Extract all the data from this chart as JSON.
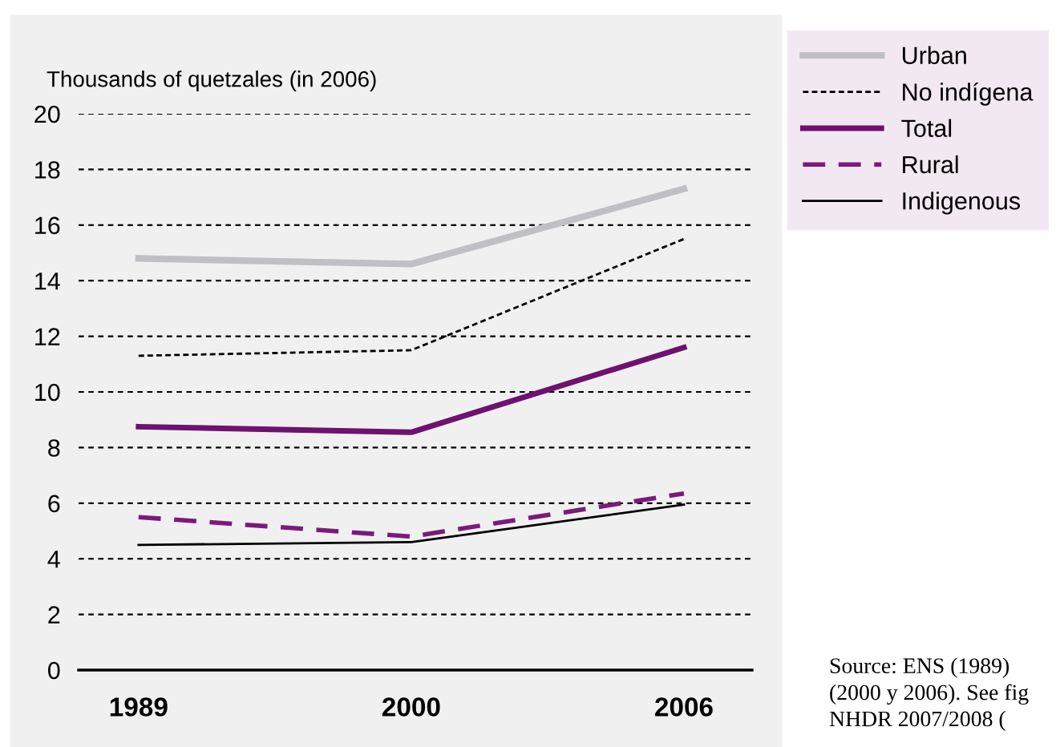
{
  "chart_data": {
    "type": "line",
    "ylabel": "Thousands of quetzales (in 2006)",
    "categories": [
      "1989",
      "2000",
      "2006"
    ],
    "series": [
      {
        "name": "Urban",
        "color": "#c0c0c4",
        "values": [
          14.8,
          14.6,
          17.3
        ],
        "line_style": "solid"
      },
      {
        "name": "No indígena",
        "color": "#000000",
        "values": [
          11.3,
          11.5,
          15.5
        ],
        "line_style": "dotted"
      },
      {
        "name": "Total",
        "color": "#6e1170",
        "values": [
          8.75,
          8.55,
          11.6
        ],
        "line_style": "solid"
      },
      {
        "name": "Rural",
        "color": "#7a1a7a",
        "values": [
          5.5,
          4.8,
          6.35
        ],
        "line_style": "dashed"
      },
      {
        "name": "Indigenous",
        "color": "#000000",
        "values": [
          4.5,
          4.6,
          5.95
        ],
        "line_style": "solid"
      }
    ],
    "ylim": [
      0,
      20
    ],
    "yticks": [
      0,
      2,
      4,
      6,
      8,
      10,
      12,
      14,
      16,
      18,
      20
    ],
    "grid": "y",
    "legend": "top right",
    "marker": "none",
    "annotations": [
      "Source: ENS (1989)\n(2000 y 2006). See fig\nNHDR 2007/2008 ("
    ]
  }
}
